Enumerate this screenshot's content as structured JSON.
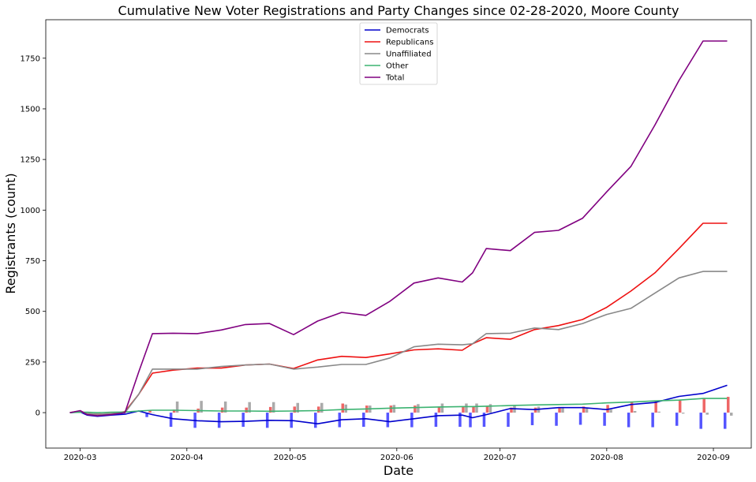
{
  "chart_data": {
    "type": "line",
    "title": "Cumulative New Voter Registrations and Party Changes since 02-28-2020, Moore County",
    "xlabel": "Date",
    "ylabel": "Registrants (count)",
    "x_ticks": [
      "2020-03",
      "2020-04",
      "2020-05",
      "2020-06",
      "2020-07",
      "2020-08",
      "2020-09"
    ],
    "x_tick_dates": [
      "2020-03-01",
      "2020-04-01",
      "2020-05-01",
      "2020-06-01",
      "2020-07-01",
      "2020-08-01",
      "2020-09-01"
    ],
    "y_ticks": [
      "0",
      "250",
      "500",
      "750",
      "1000",
      "1250",
      "1500",
      "1750"
    ],
    "y_tick_values": [
      0,
      250,
      500,
      750,
      1000,
      1250,
      1500,
      1750
    ],
    "xlim": [
      "2020-02-20",
      "2020-09-12"
    ],
    "ylim": [
      -175,
      1940
    ],
    "grid": false,
    "legend_position": "top-center",
    "x": [
      "2020-02-27",
      "2020-03-01",
      "2020-03-03",
      "2020-03-06",
      "2020-03-10",
      "2020-03-14",
      "2020-03-18",
      "2020-03-22",
      "2020-03-28",
      "2020-04-04",
      "2020-04-11",
      "2020-04-18",
      "2020-04-25",
      "2020-05-02",
      "2020-05-09",
      "2020-05-16",
      "2020-05-23",
      "2020-05-30",
      "2020-06-06",
      "2020-06-13",
      "2020-06-20",
      "2020-06-23",
      "2020-06-27",
      "2020-07-04",
      "2020-07-11",
      "2020-07-18",
      "2020-07-25",
      "2020-08-01",
      "2020-08-08",
      "2020-08-15",
      "2020-08-22",
      "2020-08-29",
      "2020-09-05"
    ],
    "series": [
      {
        "name": "Democrats",
        "color": "#0000cc",
        "values": [
          0,
          3,
          -12,
          -18,
          -12,
          -8,
          8,
          -10,
          -30,
          -40,
          -45,
          -43,
          -38,
          -40,
          -55,
          -35,
          -30,
          -45,
          -30,
          -15,
          -12,
          -25,
          -10,
          20,
          15,
          25,
          25,
          15,
          40,
          50,
          80,
          95,
          135
        ]
      },
      {
        "name": "Republicans",
        "color": "#ee1111",
        "values": [
          0,
          8,
          -5,
          -8,
          -5,
          5,
          90,
          195,
          210,
          220,
          220,
          235,
          240,
          218,
          260,
          278,
          272,
          290,
          310,
          315,
          308,
          340,
          370,
          362,
          410,
          430,
          460,
          520,
          600,
          690,
          810,
          935,
          935
        ]
      },
      {
        "name": "Unaffiliated",
        "color": "#888888",
        "values": [
          0,
          5,
          -5,
          -8,
          -5,
          0,
          90,
          215,
          215,
          215,
          228,
          235,
          240,
          215,
          225,
          238,
          238,
          270,
          325,
          338,
          335,
          340,
          390,
          392,
          418,
          410,
          440,
          485,
          515,
          590,
          665,
          697,
          697
        ]
      },
      {
        "name": "Other",
        "color": "#3cb371",
        "values": [
          0,
          2,
          2,
          0,
          2,
          3,
          8,
          12,
          12,
          10,
          8,
          8,
          7,
          8,
          10,
          15,
          18,
          22,
          25,
          28,
          30,
          30,
          32,
          35,
          38,
          40,
          42,
          48,
          52,
          58,
          62,
          70,
          70
        ]
      },
      {
        "name": "Total",
        "color": "#800080",
        "values": [
          0,
          10,
          -10,
          -15,
          -10,
          0,
          200,
          390,
          392,
          390,
          408,
          435,
          440,
          385,
          452,
          495,
          480,
          550,
          640,
          665,
          645,
          690,
          810,
          800,
          890,
          900,
          960,
          1090,
          1215,
          1420,
          1640,
          1835,
          1835
        ]
      }
    ],
    "bars": {
      "description_note": "",
      "dates": [
        "2020-03-21",
        "2020-03-28",
        "2020-04-04",
        "2020-04-11",
        "2020-04-18",
        "2020-04-25",
        "2020-05-02",
        "2020-05-09",
        "2020-05-16",
        "2020-05-23",
        "2020-05-30",
        "2020-06-06",
        "2020-06-13",
        "2020-06-20",
        "2020-06-23",
        "2020-06-27",
        "2020-07-04",
        "2020-07-11",
        "2020-07-18",
        "2020-07-25",
        "2020-08-01",
        "2020-08-08",
        "2020-08-15",
        "2020-08-22",
        "2020-08-29",
        "2020-09-05"
      ],
      "democrats": [
        -22,
        -70,
        -75,
        -75,
        -70,
        -75,
        -75,
        -75,
        -72,
        -70,
        -72,
        -72,
        -70,
        -70,
        -72,
        -70,
        -70,
        -62,
        -65,
        -60,
        -65,
        -72,
        -72,
        -65,
        -80,
        -80
      ],
      "republicans": [
        10,
        15,
        20,
        25,
        25,
        28,
        30,
        30,
        45,
        35,
        35,
        35,
        30,
        30,
        30,
        30,
        25,
        25,
        25,
        30,
        38,
        55,
        55,
        60,
        70,
        78
      ],
      "unaffiliated": [
        0,
        55,
        58,
        55,
        52,
        52,
        48,
        48,
        40,
        35,
        38,
        42,
        45,
        45,
        45,
        42,
        35,
        30,
        28,
        25,
        15,
        8,
        5,
        -5,
        -10,
        -15
      ]
    }
  }
}
